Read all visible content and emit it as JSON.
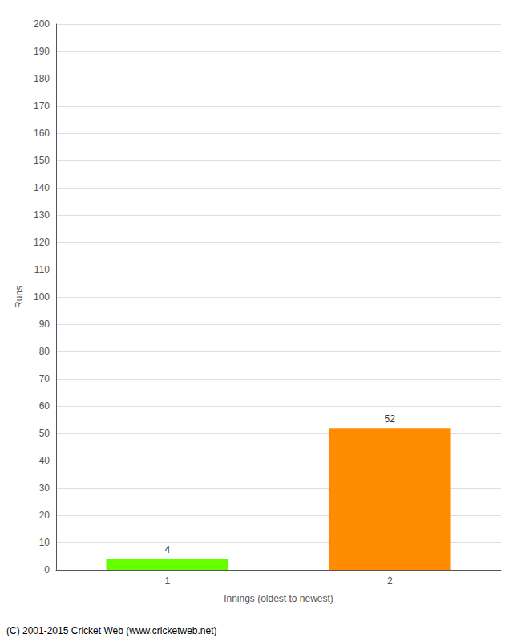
{
  "chart_data": {
    "type": "bar",
    "categories": [
      "1",
      "2"
    ],
    "values": [
      4,
      52
    ],
    "colors": [
      "#66ff00",
      "#ff8c00"
    ],
    "xlabel": "Innings (oldest to newest)",
    "ylabel": "Runs",
    "ylim": [
      0,
      200
    ],
    "yticks": [
      0,
      10,
      20,
      30,
      40,
      50,
      60,
      70,
      80,
      90,
      100,
      110,
      120,
      130,
      140,
      150,
      160,
      170,
      180,
      190,
      200
    ],
    "grid": true,
    "data_labels": true,
    "annotations": [
      "(C) 2001-2015 Cricket Web (www.cricketweb.net)"
    ]
  }
}
